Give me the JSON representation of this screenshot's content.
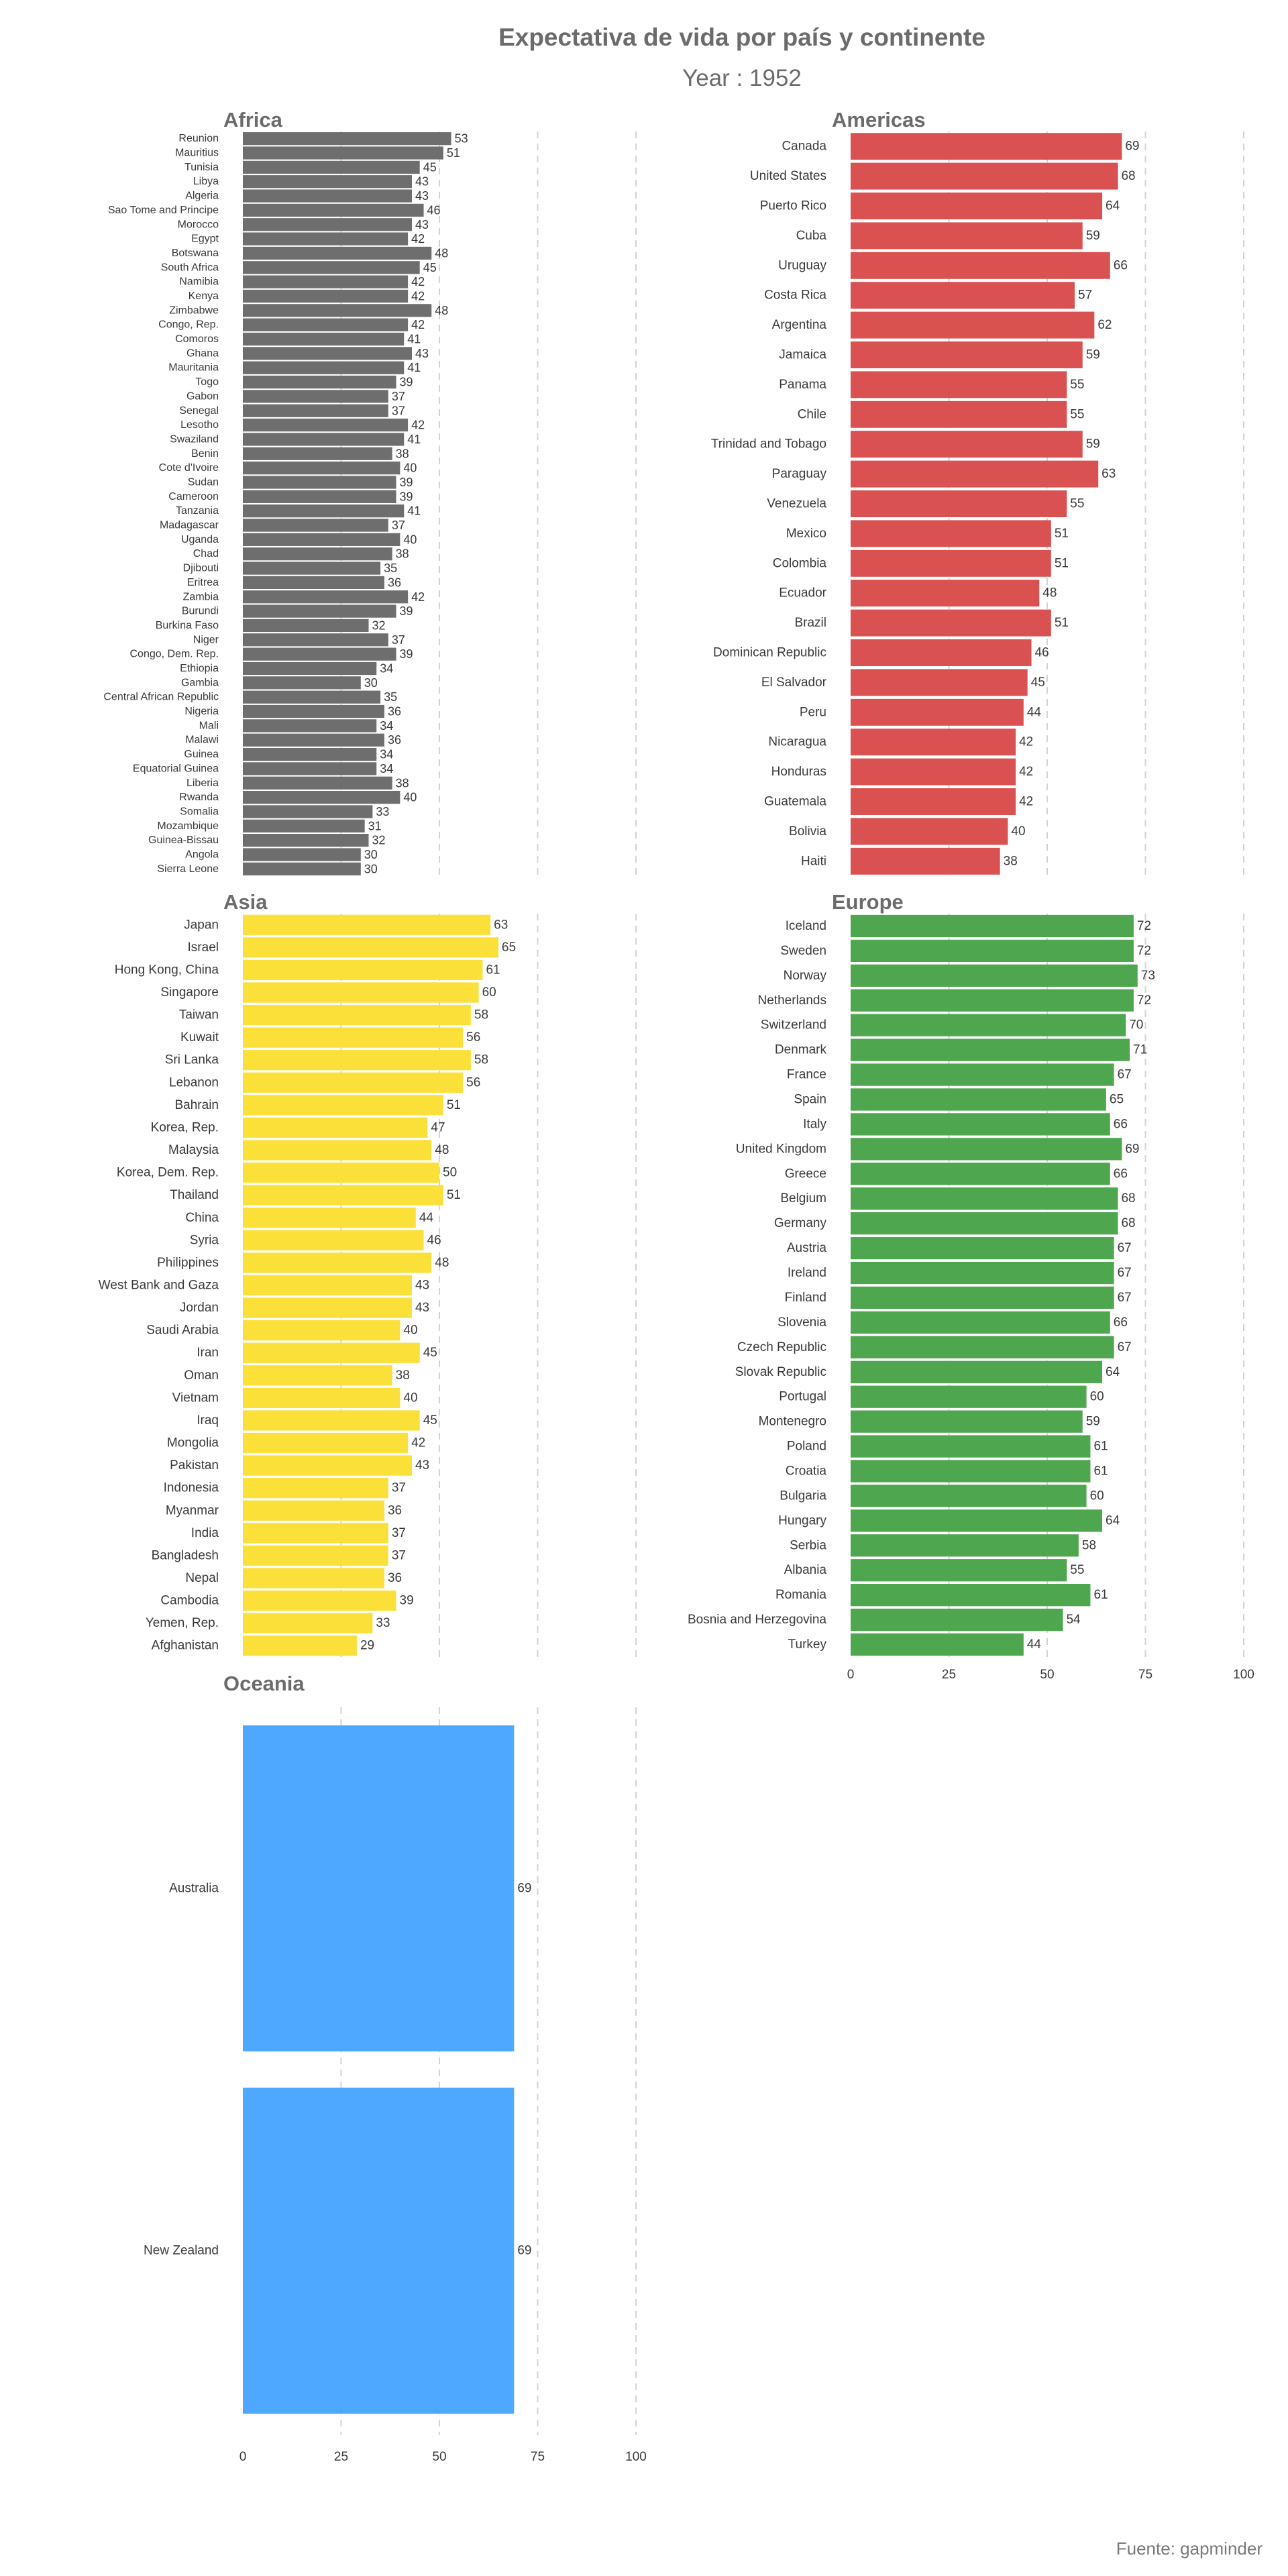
{
  "chart_data": {
    "type": "bar",
    "orientation": "horizontal",
    "title": "Expectativa de vida por país y continente",
    "subtitle": "Year : 1952",
    "caption": "Fuente: gapminder",
    "xlim": [
      0,
      100
    ],
    "x_ticks": [
      0,
      25,
      50,
      75,
      100
    ],
    "grid": "vertical dashed",
    "panels": [
      {
        "name": "Africa",
        "color": "#6e6e6e",
        "categories": [
          "Reunion",
          "Mauritius",
          "Tunisia",
          "Libya",
          "Algeria",
          "Sao Tome and Principe",
          "Morocco",
          "Egypt",
          "Botswana",
          "South Africa",
          "Namibia",
          "Kenya",
          "Zimbabwe",
          "Congo, Rep.",
          "Comoros",
          "Ghana",
          "Mauritania",
          "Togo",
          "Gabon",
          "Senegal",
          "Lesotho",
          "Swaziland",
          "Benin",
          "Cote d'Ivoire",
          "Sudan",
          "Cameroon",
          "Tanzania",
          "Madagascar",
          "Uganda",
          "Chad",
          "Djibouti",
          "Eritrea",
          "Zambia",
          "Burundi",
          "Burkina Faso",
          "Niger",
          "Congo, Dem. Rep.",
          "Ethiopia",
          "Gambia",
          "Central African Republic",
          "Nigeria",
          "Mali",
          "Malawi",
          "Guinea",
          "Equatorial Guinea",
          "Liberia",
          "Rwanda",
          "Somalia",
          "Mozambique",
          "Guinea-Bissau",
          "Angola",
          "Sierra Leone"
        ],
        "values": [
          53,
          51,
          45,
          43,
          43,
          46,
          43,
          42,
          48,
          45,
          42,
          42,
          48,
          42,
          41,
          43,
          41,
          39,
          37,
          37,
          42,
          41,
          38,
          40,
          39,
          39,
          41,
          37,
          40,
          38,
          35,
          36,
          42,
          39,
          32,
          37,
          39,
          34,
          30,
          35,
          36,
          34,
          36,
          34,
          34,
          38,
          40,
          33,
          31,
          32,
          30,
          30
        ]
      },
      {
        "name": "Americas",
        "color": "#d95151",
        "categories": [
          "Canada",
          "United States",
          "Puerto Rico",
          "Cuba",
          "Uruguay",
          "Costa Rica",
          "Argentina",
          "Jamaica",
          "Panama",
          "Chile",
          "Trinidad and Tobago",
          "Paraguay",
          "Venezuela",
          "Mexico",
          "Colombia",
          "Ecuador",
          "Brazil",
          "Dominican Republic",
          "El Salvador",
          "Peru",
          "Nicaragua",
          "Honduras",
          "Guatemala",
          "Bolivia",
          "Haiti"
        ],
        "values": [
          69,
          68,
          64,
          59,
          66,
          57,
          62,
          59,
          55,
          55,
          59,
          63,
          55,
          51,
          51,
          48,
          51,
          46,
          45,
          44,
          42,
          42,
          42,
          40,
          38
        ]
      },
      {
        "name": "Asia",
        "color": "#fbe03a",
        "categories": [
          "Japan",
          "Israel",
          "Hong Kong, China",
          "Singapore",
          "Taiwan",
          "Kuwait",
          "Sri Lanka",
          "Lebanon",
          "Bahrain",
          "Korea, Rep.",
          "Malaysia",
          "Korea, Dem. Rep.",
          "Thailand",
          "China",
          "Syria",
          "Philippines",
          "West Bank and Gaza",
          "Jordan",
          "Saudi Arabia",
          "Iran",
          "Oman",
          "Vietnam",
          "Iraq",
          "Mongolia",
          "Pakistan",
          "Indonesia",
          "Myanmar",
          "India",
          "Bangladesh",
          "Nepal",
          "Cambodia",
          "Yemen, Rep.",
          "Afghanistan"
        ],
        "values": [
          63,
          65,
          61,
          60,
          58,
          56,
          58,
          56,
          51,
          47,
          48,
          50,
          51,
          44,
          46,
          48,
          43,
          43,
          40,
          45,
          38,
          40,
          45,
          42,
          43,
          37,
          36,
          37,
          37,
          36,
          39,
          33,
          29
        ]
      },
      {
        "name": "Europe",
        "color": "#4ea64e",
        "categories": [
          "Iceland",
          "Sweden",
          "Norway",
          "Netherlands",
          "Switzerland",
          "Denmark",
          "France",
          "Spain",
          "Italy",
          "United Kingdom",
          "Greece",
          "Belgium",
          "Germany",
          "Austria",
          "Ireland",
          "Finland",
          "Slovenia",
          "Czech Republic",
          "Slovak Republic",
          "Portugal",
          "Montenegro",
          "Poland",
          "Croatia",
          "Bulgaria",
          "Hungary",
          "Serbia",
          "Albania",
          "Romania",
          "Bosnia and Herzegovina",
          "Turkey"
        ],
        "values": [
          72,
          72,
          73,
          72,
          70,
          71,
          67,
          65,
          66,
          69,
          66,
          68,
          68,
          67,
          67,
          67,
          66,
          67,
          64,
          60,
          59,
          61,
          61,
          60,
          64,
          58,
          55,
          61,
          54,
          44
        ]
      },
      {
        "name": "Oceania",
        "color": "#4ea8ff",
        "categories": [
          "Australia",
          "New Zealand"
        ],
        "values": [
          69,
          69
        ]
      }
    ]
  }
}
